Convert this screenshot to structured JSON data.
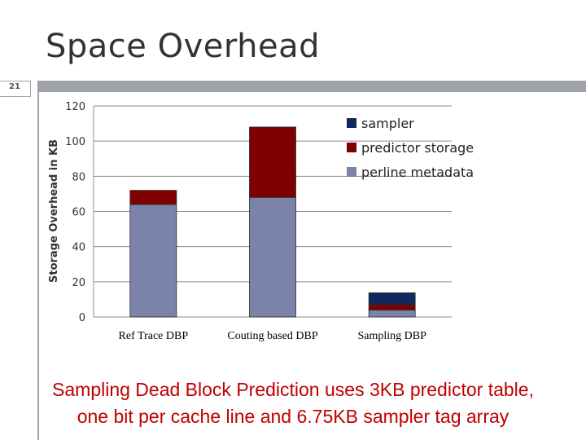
{
  "slide": {
    "title": "Space Overhead",
    "number": "21",
    "caption_lines": [
      "Sampling Dead Block Prediction uses 3KB  predictor table,",
      "one bit per cache line and  6.75KB sampler tag array"
    ]
  },
  "chart_data": {
    "type": "bar",
    "stacked": true,
    "categories": [
      "Ref Trace DBP",
      "Couting based DBP",
      "Sampling DBP"
    ],
    "series": [
      {
        "name": "perline metadata",
        "color": "#7b83a9",
        "values": [
          64,
          68,
          4
        ]
      },
      {
        "name": "predictor storage",
        "color": "#7f0000",
        "values": [
          8,
          40,
          3
        ]
      },
      {
        "name": "sampler",
        "color": "#10285e",
        "values": [
          0,
          0,
          6.75
        ]
      }
    ],
    "ylabel": "Storage Overhead  in KB",
    "xlabel": "",
    "ylim": [
      0,
      120
    ],
    "yticks": [
      0,
      20,
      40,
      60,
      80,
      100,
      120
    ],
    "grid": true,
    "legend_position": "top-right",
    "legend_order": [
      "sampler",
      "predictor storage",
      "perline metadata"
    ]
  }
}
